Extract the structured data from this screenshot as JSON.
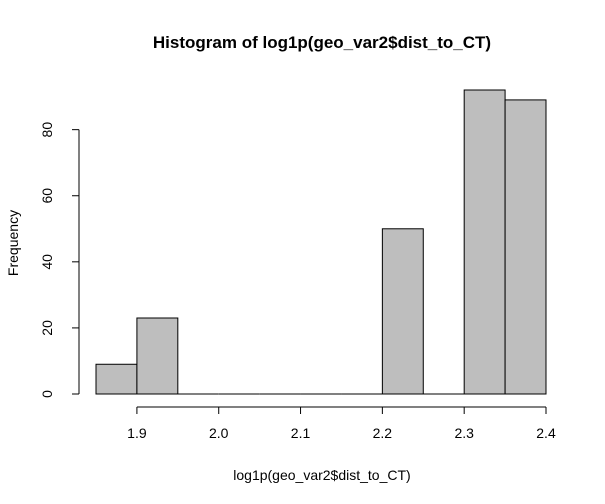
{
  "chart_data": {
    "type": "bar",
    "title": "Histogram of log1p(geo_var2$dist_to_CT)",
    "xlabel": "log1p(geo_var2$dist_to_CT)",
    "ylabel": "Frequency",
    "bins": [
      {
        "start": 1.85,
        "end": 1.9,
        "count": 9
      },
      {
        "start": 1.9,
        "end": 1.95,
        "count": 23
      },
      {
        "start": 1.95,
        "end": 2.0,
        "count": 0
      },
      {
        "start": 2.0,
        "end": 2.05,
        "count": 0
      },
      {
        "start": 2.05,
        "end": 2.1,
        "count": 0
      },
      {
        "start": 2.1,
        "end": 2.15,
        "count": 0
      },
      {
        "start": 2.15,
        "end": 2.2,
        "count": 0
      },
      {
        "start": 2.2,
        "end": 2.25,
        "count": 50
      },
      {
        "start": 2.25,
        "end": 2.3,
        "count": 0
      },
      {
        "start": 2.3,
        "end": 2.35,
        "count": 92
      },
      {
        "start": 2.35,
        "end": 2.4,
        "count": 89
      }
    ],
    "x_ticks": [
      "1.9",
      "2.0",
      "2.1",
      "2.2",
      "2.3",
      "2.4"
    ],
    "y_ticks": [
      "0",
      "20",
      "40",
      "60",
      "80"
    ],
    "xlim": [
      1.85,
      2.4
    ],
    "ylim": [
      0,
      92
    ],
    "bar_color": "#bebebe",
    "grid": false,
    "legend": "none"
  }
}
